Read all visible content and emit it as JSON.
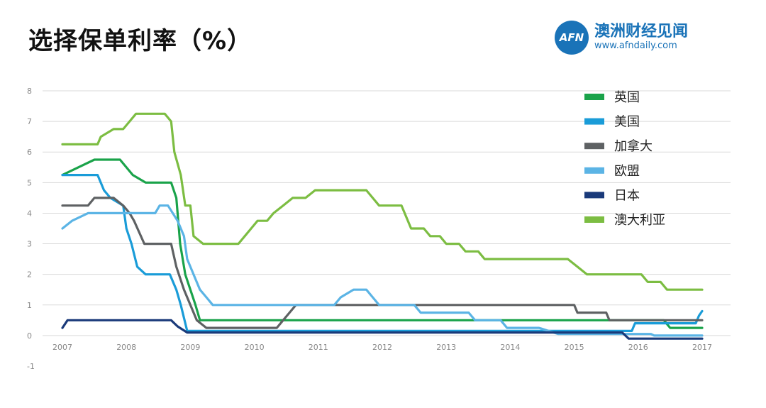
{
  "header": {
    "title": "选择保单利率（%）"
  },
  "logo": {
    "mark": "AFN",
    "name_cn": "澳洲财经见闻",
    "url": "www.afndaily.com",
    "color": "#1a73b8"
  },
  "chart_data": {
    "type": "line",
    "title": "选择保单利率（%）",
    "xlabel": "",
    "ylabel": "",
    "xlim": [
      2007,
      2017
    ],
    "ylim": [
      -1,
      8
    ],
    "x_ticks": [
      2007,
      2008,
      2009,
      2010,
      2011,
      2012,
      2013,
      2014,
      2015,
      2016,
      2017
    ],
    "y_ticks": [
      -1,
      0,
      1,
      2,
      3,
      4,
      5,
      6,
      7,
      8
    ],
    "grid": "horizontal",
    "legend_position": "top-right",
    "series": [
      {
        "name": "英国",
        "color": "#1aa34a",
        "points": [
          [
            2007.0,
            5.25
          ],
          [
            2007.25,
            5.5
          ],
          [
            2007.5,
            5.75
          ],
          [
            2007.9,
            5.75
          ],
          [
            2008.1,
            5.25
          ],
          [
            2008.3,
            5.0
          ],
          [
            2008.7,
            5.0
          ],
          [
            2008.78,
            4.5
          ],
          [
            2008.84,
            3.0
          ],
          [
            2008.92,
            2.0
          ],
          [
            2009.0,
            1.5
          ],
          [
            2009.08,
            1.0
          ],
          [
            2009.15,
            0.5
          ],
          [
            2016.4,
            0.5
          ],
          [
            2016.5,
            0.25
          ],
          [
            2017.0,
            0.25
          ]
        ]
      },
      {
        "name": "美国",
        "color": "#1a9cd8",
        "points": [
          [
            2007.0,
            5.25
          ],
          [
            2007.55,
            5.25
          ],
          [
            2007.65,
            4.75
          ],
          [
            2007.75,
            4.5
          ],
          [
            2007.95,
            4.25
          ],
          [
            2008.0,
            3.5
          ],
          [
            2008.08,
            3.0
          ],
          [
            2008.17,
            2.25
          ],
          [
            2008.3,
            2.0
          ],
          [
            2008.68,
            2.0
          ],
          [
            2008.78,
            1.5
          ],
          [
            2008.85,
            1.0
          ],
          [
            2008.95,
            0.15
          ],
          [
            2015.9,
            0.15
          ],
          [
            2015.95,
            0.4
          ],
          [
            2016.9,
            0.4
          ],
          [
            2016.95,
            0.65
          ],
          [
            2017.0,
            0.8
          ]
        ]
      },
      {
        "name": "加拿大",
        "color": "#5e6163",
        "points": [
          [
            2007.0,
            4.25
          ],
          [
            2007.4,
            4.25
          ],
          [
            2007.5,
            4.5
          ],
          [
            2007.8,
            4.5
          ],
          [
            2007.95,
            4.25
          ],
          [
            2008.05,
            4.0
          ],
          [
            2008.12,
            3.75
          ],
          [
            2008.28,
            3.0
          ],
          [
            2008.7,
            3.0
          ],
          [
            2008.78,
            2.25
          ],
          [
            2008.9,
            1.5
          ],
          [
            2009.0,
            1.0
          ],
          [
            2009.1,
            0.5
          ],
          [
            2009.25,
            0.25
          ],
          [
            2010.35,
            0.25
          ],
          [
            2010.45,
            0.5
          ],
          [
            2010.55,
            0.75
          ],
          [
            2010.65,
            1.0
          ],
          [
            2015.0,
            1.0
          ],
          [
            2015.05,
            0.75
          ],
          [
            2015.5,
            0.75
          ],
          [
            2015.55,
            0.5
          ],
          [
            2017.0,
            0.5
          ]
        ]
      },
      {
        "name": "欧盟",
        "color": "#5bb4e5",
        "points": [
          [
            2007.0,
            3.5
          ],
          [
            2007.15,
            3.75
          ],
          [
            2007.4,
            4.0
          ],
          [
            2008.45,
            4.0
          ],
          [
            2008.52,
            4.25
          ],
          [
            2008.65,
            4.25
          ],
          [
            2008.8,
            3.75
          ],
          [
            2008.9,
            3.25
          ],
          [
            2008.95,
            2.5
          ],
          [
            2009.05,
            2.0
          ],
          [
            2009.15,
            1.5
          ],
          [
            2009.25,
            1.25
          ],
          [
            2009.35,
            1.0
          ],
          [
            2011.25,
            1.0
          ],
          [
            2011.35,
            1.25
          ],
          [
            2011.55,
            1.5
          ],
          [
            2011.75,
            1.5
          ],
          [
            2011.85,
            1.25
          ],
          [
            2011.95,
            1.0
          ],
          [
            2012.5,
            1.0
          ],
          [
            2012.6,
            0.75
          ],
          [
            2013.35,
            0.75
          ],
          [
            2013.45,
            0.5
          ],
          [
            2013.85,
            0.5
          ],
          [
            2013.95,
            0.25
          ],
          [
            2014.45,
            0.25
          ],
          [
            2014.6,
            0.15
          ],
          [
            2014.75,
            0.05
          ],
          [
            2016.2,
            0.05
          ],
          [
            2016.25,
            0.0
          ],
          [
            2017.0,
            0.0
          ]
        ]
      },
      {
        "name": "日本",
        "color": "#1a3a7a",
        "points": [
          [
            2007.0,
            0.25
          ],
          [
            2007.08,
            0.5
          ],
          [
            2008.55,
            0.5
          ],
          [
            2008.7,
            0.5
          ],
          [
            2008.8,
            0.3
          ],
          [
            2008.95,
            0.1
          ],
          [
            2015.65,
            0.1
          ],
          [
            2015.75,
            0.1
          ],
          [
            2015.85,
            -0.1
          ],
          [
            2017.0,
            -0.1
          ]
        ]
      },
      {
        "name": "澳大利亚",
        "color": "#7cbd42",
        "points": [
          [
            2007.0,
            6.25
          ],
          [
            2007.55,
            6.25
          ],
          [
            2007.6,
            6.5
          ],
          [
            2007.8,
            6.75
          ],
          [
            2007.95,
            6.75
          ],
          [
            2008.05,
            7.0
          ],
          [
            2008.15,
            7.25
          ],
          [
            2008.6,
            7.25
          ],
          [
            2008.7,
            7.0
          ],
          [
            2008.75,
            6.0
          ],
          [
            2008.85,
            5.25
          ],
          [
            2008.92,
            4.25
          ],
          [
            2009.0,
            4.25
          ],
          [
            2009.05,
            3.25
          ],
          [
            2009.2,
            3.0
          ],
          [
            2009.75,
            3.0
          ],
          [
            2009.85,
            3.25
          ],
          [
            2009.95,
            3.5
          ],
          [
            2010.05,
            3.75
          ],
          [
            2010.2,
            3.75
          ],
          [
            2010.3,
            4.0
          ],
          [
            2010.45,
            4.25
          ],
          [
            2010.6,
            4.5
          ],
          [
            2010.8,
            4.5
          ],
          [
            2010.95,
            4.75
          ],
          [
            2011.75,
            4.75
          ],
          [
            2011.85,
            4.5
          ],
          [
            2011.95,
            4.25
          ],
          [
            2012.3,
            4.25
          ],
          [
            2012.4,
            3.75
          ],
          [
            2012.45,
            3.5
          ],
          [
            2012.65,
            3.5
          ],
          [
            2012.75,
            3.25
          ],
          [
            2012.9,
            3.25
          ],
          [
            2013.0,
            3.0
          ],
          [
            2013.2,
            3.0
          ],
          [
            2013.3,
            2.75
          ],
          [
            2013.5,
            2.75
          ],
          [
            2013.6,
            2.5
          ],
          [
            2014.9,
            2.5
          ],
          [
            2015.05,
            2.25
          ],
          [
            2015.2,
            2.0
          ],
          [
            2016.05,
            2.0
          ],
          [
            2016.15,
            1.75
          ],
          [
            2016.35,
            1.75
          ],
          [
            2016.45,
            1.5
          ],
          [
            2017.0,
            1.5
          ]
        ]
      }
    ]
  }
}
